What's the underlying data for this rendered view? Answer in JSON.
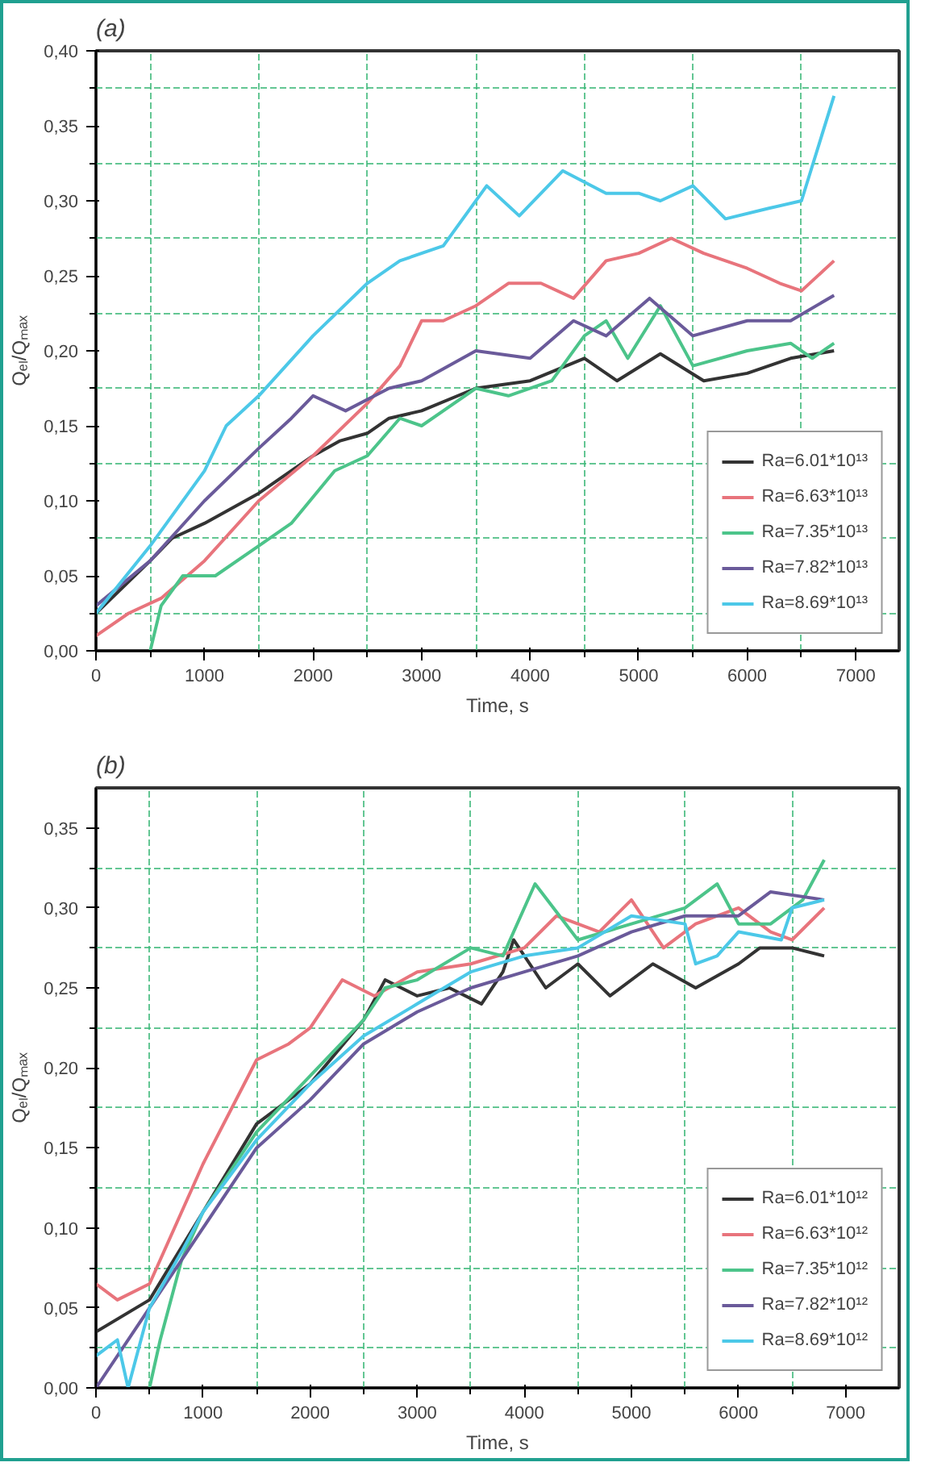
{
  "chart_data": [
    {
      "type": "line",
      "title": "(a)",
      "xlabel": "Time, s",
      "ylabel": "Qₑₗ/Qₘₐₓ",
      "xlim": [
        0,
        7400
      ],
      "ylim": [
        0,
        0.4
      ],
      "xticks": [
        0,
        1000,
        2000,
        3000,
        4000,
        5000,
        6000,
        7000,
        {
          "value": 500,
          "label": null
        },
        {
          "value": 1500,
          "label": null
        },
        {
          "value": 2500,
          "label": null
        },
        {
          "value": 3500,
          "label": null
        },
        {
          "value": 4500,
          "label": null
        },
        {
          "value": 5500,
          "label": null
        },
        {
          "value": 6500,
          "label": null
        }
      ],
      "yticks": [
        {
          "value": 0,
          "label": "0,00"
        },
        {
          "value": 0.05,
          "label": "0,05"
        },
        {
          "value": 0.1,
          "label": "0,10"
        },
        {
          "value": 0.15,
          "label": "0,15"
        },
        {
          "value": 0.2,
          "label": "0,20"
        },
        {
          "value": 0.25,
          "label": "0,25"
        },
        {
          "value": 0.3,
          "label": "0,30"
        },
        {
          "value": 0.35,
          "label": "0,35"
        },
        {
          "value": 0.4,
          "label": "0,40"
        },
        {
          "value": 0.025,
          "label": null
        },
        {
          "value": 0.075,
          "label": null
        },
        {
          "value": 0.125,
          "label": null
        },
        {
          "value": 0.175,
          "label": null
        },
        {
          "value": 0.225,
          "label": null
        },
        {
          "value": 0.275,
          "label": null
        },
        {
          "value": 0.325,
          "label": null
        },
        {
          "value": 0.375,
          "label": null
        }
      ],
      "grid": true,
      "legend": "bottom right",
      "line_style": "solid",
      "marker": "none",
      "series": [
        {
          "name": "Ra=6.01*10¹³",
          "color": "#333333",
          "x": [
            0,
            500,
            700,
            1000,
            1500,
            2000,
            2250,
            2500,
            2700,
            3000,
            3500,
            4000,
            4500,
            4800,
            5200,
            5600,
            6000,
            6400,
            6800
          ],
          "values": [
            0.025,
            0.06,
            0.075,
            0.085,
            0.105,
            0.13,
            0.14,
            0.145,
            0.155,
            0.16,
            0.175,
            0.18,
            0.195,
            0.18,
            0.198,
            0.18,
            0.185,
            0.195,
            0.2
          ]
        },
        {
          "name": "Ra=6.63*10¹³",
          "color": "#e8747c",
          "x": [
            0,
            300,
            600,
            1000,
            1500,
            2000,
            2500,
            2800,
            3000,
            3200,
            3500,
            3800,
            4100,
            4400,
            4700,
            5000,
            5300,
            5600,
            6000,
            6300,
            6500,
            6800
          ],
          "values": [
            0.01,
            0.025,
            0.035,
            0.06,
            0.1,
            0.13,
            0.165,
            0.19,
            0.22,
            0.22,
            0.23,
            0.245,
            0.245,
            0.235,
            0.26,
            0.265,
            0.275,
            0.265,
            0.255,
            0.245,
            0.24,
            0.26
          ]
        },
        {
          "name": "Ra=7.35*10¹³",
          "color": "#4cc48a",
          "x": [
            500,
            600,
            800,
            1100,
            1500,
            1800,
            2200,
            2500,
            2800,
            3000,
            3500,
            3800,
            4200,
            4500,
            4700,
            4900,
            5200,
            5500,
            6000,
            6400,
            6600,
            6800
          ],
          "values": [
            0.0,
            0.03,
            0.05,
            0.05,
            0.07,
            0.085,
            0.12,
            0.13,
            0.155,
            0.15,
            0.175,
            0.17,
            0.18,
            0.21,
            0.22,
            0.195,
            0.23,
            0.19,
            0.2,
            0.205,
            0.195,
            0.205
          ]
        },
        {
          "name": "Ra=7.82*10¹³",
          "color": "#6a5a9a",
          "x": [
            0,
            500,
            1000,
            1500,
            1800,
            2000,
            2300,
            2700,
            3000,
            3500,
            4000,
            4400,
            4700,
            5100,
            5500,
            6000,
            6400,
            6800
          ],
          "values": [
            0.03,
            0.06,
            0.1,
            0.135,
            0.155,
            0.17,
            0.16,
            0.175,
            0.18,
            0.2,
            0.195,
            0.22,
            0.21,
            0.235,
            0.21,
            0.22,
            0.22,
            0.237
          ]
        },
        {
          "name": "Ra=8.69*10¹³",
          "color": "#4cc8e8",
          "x": [
            0,
            500,
            1000,
            1200,
            1500,
            2000,
            2500,
            2800,
            3200,
            3600,
            3900,
            4300,
            4700,
            5000,
            5200,
            5500,
            5800,
            6200,
            6500,
            6800
          ],
          "values": [
            0.025,
            0.07,
            0.12,
            0.15,
            0.17,
            0.21,
            0.245,
            0.26,
            0.27,
            0.31,
            0.29,
            0.32,
            0.305,
            0.305,
            0.3,
            0.31,
            0.288,
            0.295,
            0.3,
            0.37
          ]
        }
      ]
    },
    {
      "type": "line",
      "title": "(b)",
      "xlabel": "Time, s",
      "ylabel": "Qₑₗ/Qₘₐₓ",
      "xlim": [
        0,
        7500
      ],
      "ylim": [
        0,
        0.375
      ],
      "xticks": [
        0,
        1000,
        2000,
        3000,
        4000,
        5000,
        6000,
        7000,
        {
          "value": 500,
          "label": null
        },
        {
          "value": 1500,
          "label": null
        },
        {
          "value": 2500,
          "label": null
        },
        {
          "value": 3500,
          "label": null
        },
        {
          "value": 4500,
          "label": null
        },
        {
          "value": 5500,
          "label": null
        },
        {
          "value": 6500,
          "label": null
        }
      ],
      "yticks": [
        {
          "value": 0,
          "label": "0,00"
        },
        {
          "value": 0.05,
          "label": "0,05"
        },
        {
          "value": 0.1,
          "label": "0,10"
        },
        {
          "value": 0.15,
          "label": "0,15"
        },
        {
          "value": 0.2,
          "label": "0,20"
        },
        {
          "value": 0.25,
          "label": "0,25"
        },
        {
          "value": 0.3,
          "label": "0,30"
        },
        {
          "value": 0.35,
          "label": "0,35"
        },
        {
          "value": 0.025,
          "label": null
        },
        {
          "value": 0.075,
          "label": null
        },
        {
          "value": 0.125,
          "label": null
        },
        {
          "value": 0.175,
          "label": null
        },
        {
          "value": 0.225,
          "label": null
        },
        {
          "value": 0.275,
          "label": null
        },
        {
          "value": 0.325,
          "label": null
        }
      ],
      "grid": true,
      "legend": "bottom right",
      "line_style": "solid",
      "marker": "none",
      "series": [
        {
          "name": "Ra=6.01*10¹²",
          "color": "#333333",
          "x": [
            0,
            500,
            1000,
            1500,
            2000,
            2500,
            2700,
            3000,
            3300,
            3600,
            3800,
            3900,
            4200,
            4500,
            4800,
            5200,
            5600,
            6000,
            6200,
            6500,
            6800
          ],
          "values": [
            0.035,
            0.055,
            0.11,
            0.165,
            0.19,
            0.23,
            0.255,
            0.245,
            0.25,
            0.24,
            0.26,
            0.28,
            0.25,
            0.265,
            0.245,
            0.265,
            0.25,
            0.265,
            0.275,
            0.275,
            0.27
          ]
        },
        {
          "name": "Ra=6.63*10¹²",
          "color": "#e8747c",
          "x": [
            0,
            200,
            500,
            1000,
            1500,
            1800,
            2000,
            2300,
            2600,
            3000,
            3500,
            4000,
            4300,
            4700,
            5000,
            5300,
            5600,
            6000,
            6300,
            6500,
            6800
          ],
          "values": [
            0.065,
            0.055,
            0.065,
            0.14,
            0.205,
            0.215,
            0.225,
            0.255,
            0.245,
            0.26,
            0.265,
            0.275,
            0.295,
            0.285,
            0.305,
            0.275,
            0.29,
            0.3,
            0.285,
            0.28,
            0.3
          ]
        },
        {
          "name": "Ra=7.35*10¹²",
          "color": "#4cc48a",
          "x": [
            500,
            600,
            800,
            1000,
            1500,
            2000,
            2500,
            2700,
            3000,
            3500,
            3800,
            4100,
            4500,
            5000,
            5500,
            5800,
            6000,
            6300,
            6600,
            6800
          ],
          "values": [
            0.0,
            0.03,
            0.08,
            0.11,
            0.16,
            0.195,
            0.23,
            0.25,
            0.255,
            0.275,
            0.27,
            0.315,
            0.28,
            0.29,
            0.3,
            0.315,
            0.29,
            0.29,
            0.305,
            0.33
          ]
        },
        {
          "name": "Ra=7.82*10¹²",
          "color": "#6a5a9a",
          "x": [
            0,
            500,
            1000,
            1500,
            2000,
            2500,
            3000,
            3500,
            4000,
            4500,
            5000,
            5500,
            6000,
            6300,
            6800
          ],
          "values": [
            0.0,
            0.05,
            0.1,
            0.15,
            0.18,
            0.215,
            0.235,
            0.25,
            0.26,
            0.27,
            0.285,
            0.295,
            0.295,
            0.31,
            0.305
          ]
        },
        {
          "name": "Ra=8.69*10¹²",
          "color": "#4cc8e8",
          "x": [
            0,
            200,
            300,
            500,
            800,
            1000,
            1500,
            2000,
            2500,
            3000,
            3500,
            4000,
            4500,
            5000,
            5500,
            5600,
            5800,
            6000,
            6400,
            6500,
            6800
          ],
          "values": [
            0.02,
            0.03,
            0.0,
            0.05,
            0.085,
            0.11,
            0.155,
            0.19,
            0.22,
            0.24,
            0.26,
            0.27,
            0.275,
            0.295,
            0.29,
            0.265,
            0.27,
            0.285,
            0.28,
            0.3,
            0.305
          ]
        }
      ]
    }
  ]
}
